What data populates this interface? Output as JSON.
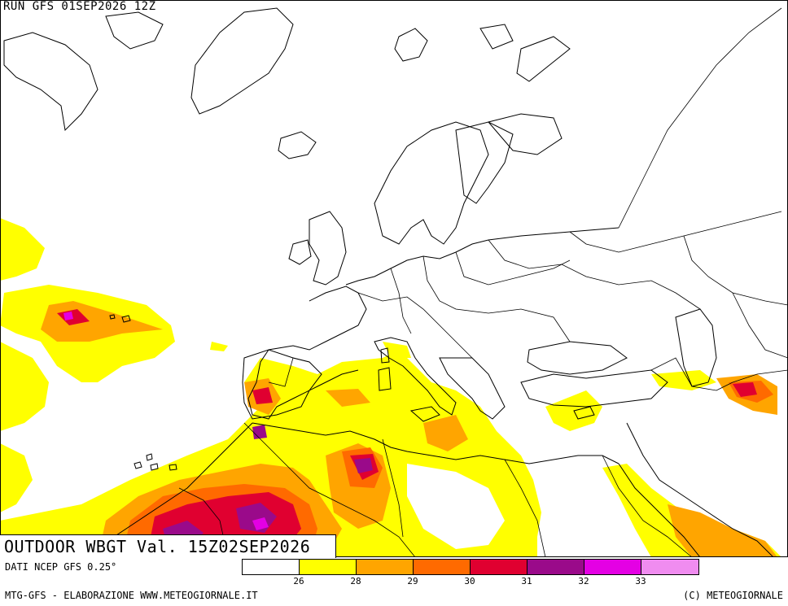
{
  "header": {
    "run_label": "RUN GFS 01SEP2026 12Z"
  },
  "title": {
    "text": "OUTDOOR WBGT Val. 15Z02SEP2026"
  },
  "source": {
    "text": "DATI NCEP GFS 0.25°"
  },
  "footer": {
    "left": "MTG-GFS - ELABORAZIONE WWW.METEOGIORNALE.IT",
    "right": "(C) METEOGIORNALE"
  },
  "legend": {
    "colors": [
      "#ffffff",
      "#ffff00",
      "#ffa500",
      "#ff6a00",
      "#e00030",
      "#9a0a8a",
      "#e400e4",
      "#f08cf0"
    ],
    "ticks": [
      "26",
      "28",
      "29",
      "30",
      "31",
      "32",
      "33"
    ]
  },
  "map": {
    "colors": {
      "coast": "#000000",
      "yellow": "#ffff00",
      "orange": "#ffa500",
      "dark_orange": "#ff6a00",
      "red": "#e00030",
      "purple": "#9a0a8a",
      "magenta": "#e400e4"
    }
  }
}
